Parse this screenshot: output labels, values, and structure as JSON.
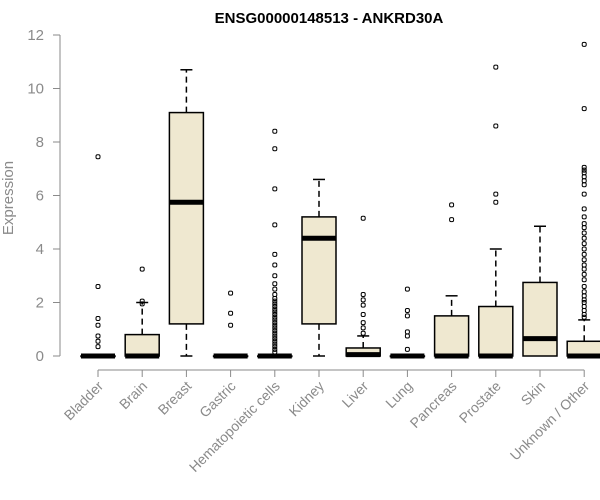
{
  "chart_data": {
    "type": "boxplot",
    "title": "ENSG00000148513 - ANKRD30A",
    "xlabel": "",
    "ylabel": "Expression",
    "ylim": [
      0,
      12
    ],
    "yticks": [
      0,
      2,
      4,
      6,
      8,
      10,
      12
    ],
    "box_fill": "#efe8d0",
    "categories": [
      "Bladder",
      "Brain",
      "Breast",
      "Gastric",
      "Hematopoietic cells",
      "Kidney",
      "Liver",
      "Lung",
      "Pancreas",
      "Prostate",
      "Skin",
      "Unknown / Other"
    ],
    "boxes": [
      {
        "q1": 0,
        "median": 0,
        "q3": 0,
        "whisker_low": 0,
        "whisker_high": 0,
        "outliers": [
          7.45,
          2.6,
          1.4,
          1.15,
          0.75,
          0.55,
          0.35
        ]
      },
      {
        "q1": 0,
        "median": 0,
        "q3": 0.8,
        "whisker_low": 0,
        "whisker_high": 2.0,
        "outliers": [
          3.25,
          2.05,
          1.95
        ]
      },
      {
        "q1": 1.2,
        "median": 5.75,
        "q3": 9.1,
        "whisker_low": 0,
        "whisker_high": 10.7,
        "outliers": []
      },
      {
        "q1": 0,
        "median": 0,
        "q3": 0,
        "whisker_low": 0,
        "whisker_high": 0,
        "outliers": [
          2.35,
          1.6,
          1.15
        ]
      },
      {
        "q1": 0,
        "median": 0,
        "q3": 0,
        "whisker_low": 0,
        "whisker_high": 0,
        "outliers": [
          8.4,
          7.75,
          6.25,
          4.9,
          3.8,
          3.4,
          3.0,
          2.7,
          2.5,
          2.3,
          2.15,
          2.05,
          1.95,
          1.85,
          1.75,
          1.65,
          1.55,
          1.45,
          1.35,
          1.25,
          1.15,
          1.05,
          0.95,
          0.85,
          0.75,
          0.65,
          0.55,
          0.45,
          0.35,
          0.25,
          0.15
        ]
      },
      {
        "q1": 1.2,
        "median": 4.4,
        "q3": 5.2,
        "whisker_low": 0,
        "whisker_high": 6.6,
        "outliers": []
      },
      {
        "q1": 0,
        "median": 0.05,
        "q3": 0.3,
        "whisker_low": 0,
        "whisker_high": 0.75,
        "outliers": [
          5.15,
          2.3,
          2.1,
          1.9,
          1.55,
          1.25,
          1.05,
          0.85
        ]
      },
      {
        "q1": 0,
        "median": 0,
        "q3": 0,
        "whisker_low": 0,
        "whisker_high": 0,
        "outliers": [
          2.5,
          1.7,
          1.5,
          0.9,
          0.75,
          0.25
        ]
      },
      {
        "q1": 0,
        "median": 0,
        "q3": 1.5,
        "whisker_low": 0,
        "whisker_high": 2.25,
        "outliers": [
          5.65,
          5.1
        ]
      },
      {
        "q1": 0,
        "median": 0,
        "q3": 1.85,
        "whisker_low": 0,
        "whisker_high": 4.0,
        "outliers": [
          10.8,
          8.6,
          6.05,
          5.75
        ]
      },
      {
        "q1": 0,
        "median": 0.65,
        "q3": 2.75,
        "whisker_low": 0,
        "whisker_high": 4.85,
        "outliers": []
      },
      {
        "q1": 0,
        "median": 0,
        "q3": 0.55,
        "whisker_low": 0,
        "whisker_high": 1.35,
        "outliers": [
          11.65,
          9.25,
          7.05,
          6.95,
          6.85,
          6.7,
          6.55,
          6.4,
          6.05,
          5.5,
          5.2,
          4.95,
          4.8,
          4.6,
          4.4,
          4.2,
          4.0,
          3.8,
          3.6,
          3.4,
          3.25,
          3.05,
          2.85,
          2.6,
          2.4,
          2.25,
          2.1,
          2.0,
          1.85,
          1.7,
          1.55,
          1.45
        ]
      }
    ]
  }
}
